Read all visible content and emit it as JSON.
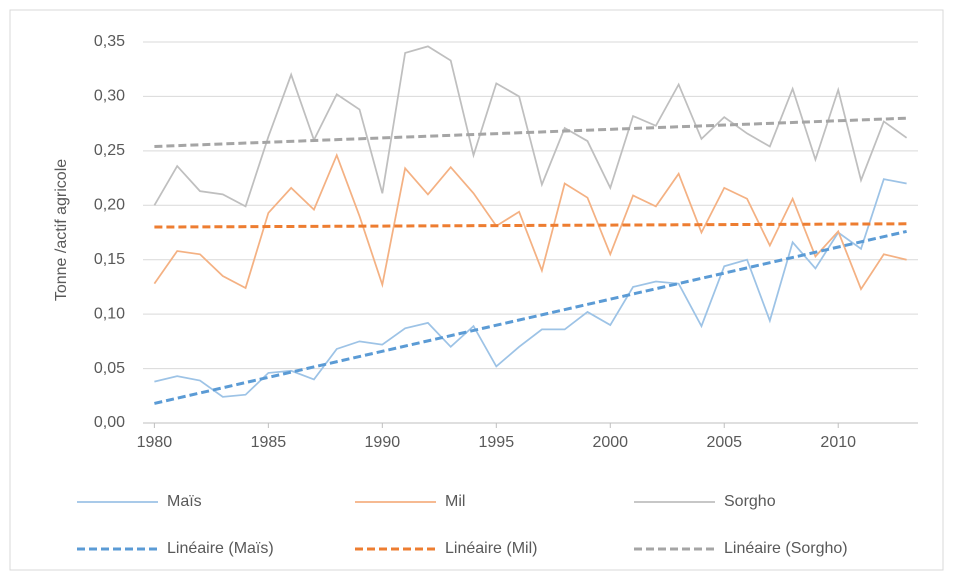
{
  "chart_data": {
    "type": "line",
    "ylabel": "Tonne /actif agricole",
    "x": [
      1980,
      1981,
      1982,
      1983,
      1984,
      1985,
      1986,
      1987,
      1988,
      1989,
      1990,
      1991,
      1992,
      1993,
      1994,
      1995,
      1996,
      1997,
      1998,
      1999,
      2000,
      2001,
      2002,
      2003,
      2004,
      2005,
      2006,
      2007,
      2008,
      2009,
      2010,
      2011,
      2012,
      2013
    ],
    "series": [
      {
        "name": "Maïs",
        "color": "#9dc3e6",
        "values": [
          0.038,
          0.043,
          0.039,
          0.024,
          0.026,
          0.046,
          0.048,
          0.04,
          0.068,
          0.075,
          0.072,
          0.087,
          0.092,
          0.07,
          0.089,
          0.052,
          0.07,
          0.086,
          0.086,
          0.102,
          0.09,
          0.125,
          0.13,
          0.128,
          0.089,
          0.144,
          0.15,
          0.094,
          0.166,
          0.142,
          0.175,
          0.16,
          0.224,
          0.22
        ]
      },
      {
        "name": "Mil",
        "color": "#f4b183",
        "values": [
          0.128,
          0.158,
          0.155,
          0.135,
          0.124,
          0.193,
          0.216,
          0.196,
          0.246,
          0.19,
          0.127,
          0.234,
          0.21,
          0.235,
          0.211,
          0.181,
          0.194,
          0.14,
          0.22,
          0.207,
          0.155,
          0.209,
          0.199,
          0.229,
          0.175,
          0.216,
          0.206,
          0.163,
          0.206,
          0.153,
          0.176,
          0.123,
          0.155,
          0.15
        ]
      },
      {
        "name": "Sorgho",
        "color": "#bfbfbf",
        "values": [
          0.2,
          0.236,
          0.213,
          0.21,
          0.199,
          0.263,
          0.32,
          0.26,
          0.302,
          0.288,
          0.211,
          0.34,
          0.346,
          0.333,
          0.246,
          0.312,
          0.3,
          0.219,
          0.271,
          0.259,
          0.216,
          0.282,
          0.273,
          0.311,
          0.261,
          0.281,
          0.266,
          0.254,
          0.307,
          0.242,
          0.306,
          0.223,
          0.277,
          0.262
        ]
      },
      {
        "name": "Linéaire (Maïs)",
        "color": "#5b9bd5",
        "dashed": true,
        "x": [
          1980,
          2013
        ],
        "values": [
          0.018,
          0.176
        ]
      },
      {
        "name": "Linéaire (Mil)",
        "color": "#ed7d31",
        "dashed": true,
        "x": [
          1980,
          2013
        ],
        "values": [
          0.18,
          0.183
        ]
      },
      {
        "name": "Linéaire (Sorgho)",
        "color": "#a5a5a5",
        "dashed": true,
        "x": [
          1980,
          2013
        ],
        "values": [
          0.254,
          0.28
        ]
      }
    ],
    "xlim": [
      1979.5,
      2013.5
    ],
    "xticks": [
      1980,
      1985,
      1990,
      1995,
      2000,
      2005,
      2010
    ],
    "ylim": [
      0,
      0.35
    ],
    "yticks": [
      {
        "value": 0,
        "label": "0,00"
      },
      {
        "value": 0.05,
        "label": "0,05"
      },
      {
        "value": 0.1,
        "label": "0,10"
      },
      {
        "value": 0.15,
        "label": "0,15"
      },
      {
        "value": 0.2,
        "label": "0,20"
      },
      {
        "value": 0.25,
        "label": "0,25"
      },
      {
        "value": 0.3,
        "label": "0,30"
      },
      {
        "value": 0.35,
        "label": "0,35"
      }
    ],
    "grid": true,
    "legend": "bottom"
  }
}
